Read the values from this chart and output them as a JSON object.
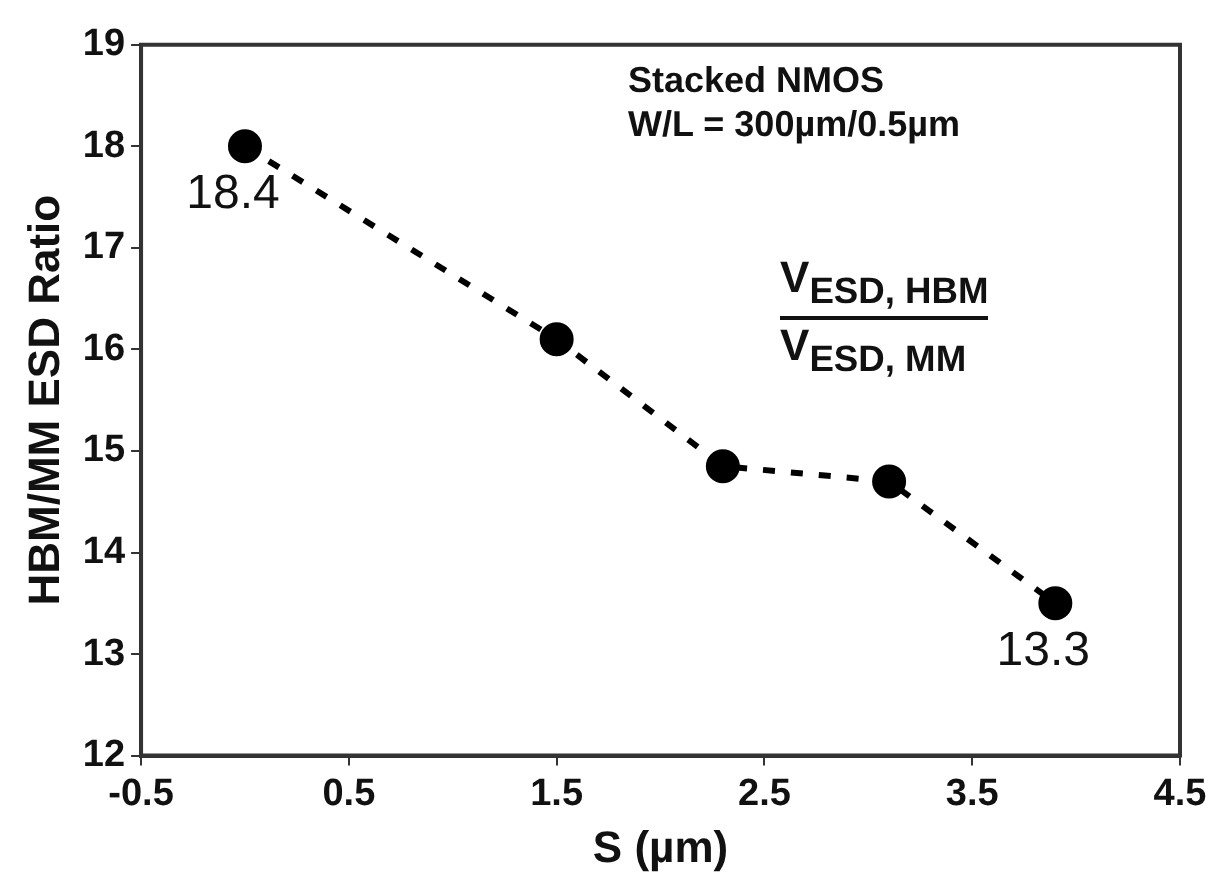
{
  "chart_data": {
    "type": "line",
    "xlabel": "S (µm)",
    "ylabel": "HBM/MM ESD Ratio",
    "x": [
      0,
      1.5,
      2.3,
      3.1,
      3.9
    ],
    "series": [
      {
        "color": "#000000",
        "values": [
          18.0,
          16.1,
          14.85,
          14.7,
          13.5
        ]
      }
    ],
    "xlim": [
      -0.5,
      4.5
    ],
    "xticks": [
      -0.5,
      0.5,
      1.5,
      2.5,
      3.5,
      4.5
    ],
    "ylim": [
      12,
      19
    ],
    "yticks": [
      12,
      13,
      14,
      15,
      16,
      17,
      18,
      19
    ],
    "marker": "circle",
    "line_style": "dashed",
    "legend": false,
    "grid": false,
    "annotations": [
      "Stacked NMOS",
      "W/L = 300µm/0.5µm",
      "V$_{ESD, HBM}$",
      "V$_{ESD, MM}$",
      {
        "text": "18.4",
        "x": 0,
        "y": 18.0
      },
      {
        "text": "13.3",
        "x": 3.9,
        "y": 13.5
      }
    ]
  }
}
